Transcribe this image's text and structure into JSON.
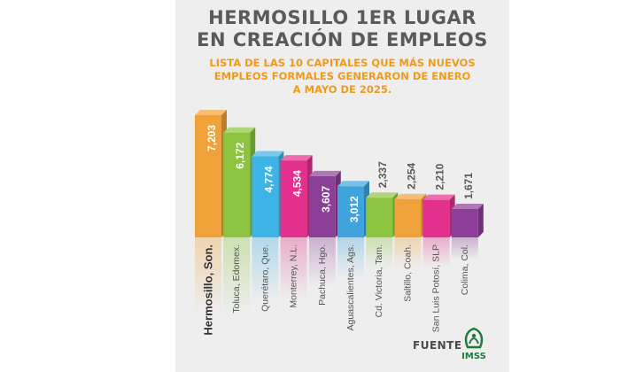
{
  "header": {
    "title_lines": [
      "HERMOSILLO 1ER LUGAR",
      "EN CREACIÓN DE EMPLEOS"
    ],
    "subtitle_lines": [
      "LISTA DE LAS 10 CAPITALES QUE MÁS NUEVOS",
      "EMPLEOS FORMALES GENERARON DE ENERO",
      "A MAYO DE 2025."
    ]
  },
  "footer": {
    "source_label": "FUENTE",
    "logo_text": "IMSS"
  },
  "chart_data": {
    "type": "bar",
    "categories": [
      "Hermosillo, Son.",
      "Toluca, Edomex.",
      "Querétaro, Que.",
      "Monterrey, N.L.",
      "Pachuca, Hgo.",
      "Aguascalientes, Ags.",
      "Cd. Victoria, Tam.",
      "Saltillo, Coah.",
      "San Luis Potosí, SLP",
      "Colima, Col."
    ],
    "values": [
      7203,
      6172,
      4774,
      4534,
      3607,
      3012,
      2337,
      2254,
      2210,
      1671
    ],
    "value_labels": [
      "7,203",
      "6,172",
      "4,774",
      "4,534",
      "3,607",
      "3,012",
      "2,337",
      "2,254",
      "2,210",
      "1,671"
    ],
    "colors": [
      "#f0a23a",
      "#8cc43f",
      "#3db3e6",
      "#e3308c",
      "#8c3f97",
      "#3fa4dd",
      "#8cc43f",
      "#f0a23a",
      "#e3308c",
      "#8c3f97"
    ],
    "ylim": [
      0,
      7203
    ],
    "grid": false,
    "legend": "none"
  }
}
